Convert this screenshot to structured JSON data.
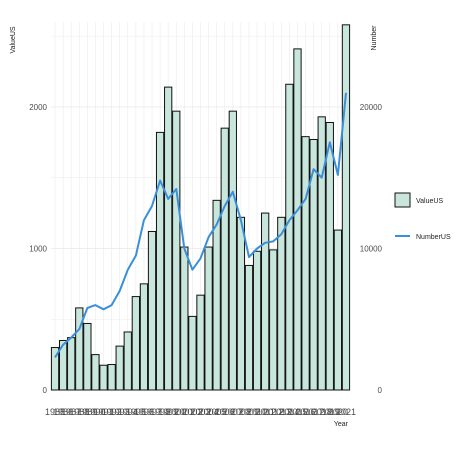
{
  "chart_data": {
    "type": "bar",
    "categories": [
      "1985",
      "1986",
      "1987",
      "1988",
      "1989",
      "1990",
      "1991",
      "1992",
      "1993",
      "1994",
      "1995",
      "1996",
      "1997",
      "1998",
      "1999",
      "2000",
      "2001",
      "2002",
      "2003",
      "2004",
      "2005",
      "2006",
      "2007",
      "2008",
      "2009",
      "2010",
      "2011",
      "2012",
      "2013",
      "2014",
      "2015",
      "2016",
      "2017",
      "2018",
      "2019",
      "2020",
      "2021"
    ],
    "series": [
      {
        "name": "ValueUS",
        "type": "bar",
        "axis": "left",
        "values": [
          300,
          350,
          370,
          580,
          470,
          250,
          175,
          180,
          310,
          410,
          660,
          750,
          1120,
          1820,
          2140,
          1970,
          1010,
          520,
          670,
          1010,
          1340,
          1850,
          1970,
          1220,
          880,
          980,
          1250,
          990,
          1220,
          2160,
          2410,
          1790,
          1770,
          1930,
          1890,
          1130,
          2580
        ]
      },
      {
        "name": "NumberUS",
        "type": "line",
        "axis": "right",
        "values": [
          2300,
          3200,
          3700,
          4300,
          5800,
          6000,
          5700,
          6000,
          7000,
          8500,
          9500,
          12000,
          13000,
          14800,
          13500,
          14200,
          10000,
          8500,
          9300,
          10800,
          11700,
          13000,
          14000,
          12000,
          9400,
          10000,
          10400,
          10500,
          11000,
          12000,
          12700,
          13500,
          15600,
          15000,
          17500,
          15200,
          21000
        ]
      }
    ],
    "ylabel": "ValueUS",
    "y2label": "Number",
    "xlabel": "Year",
    "ylim": [
      0,
      2600
    ],
    "y2lim": [
      0,
      26000
    ],
    "yticks": [
      "0",
      "1000",
      "2000"
    ],
    "y2ticks": [
      "0",
      "10000",
      "20000"
    ],
    "legend_position": "right",
    "grid": true,
    "colors": {
      "bar_fill": "#c9e6dc",
      "bar_stroke": "#111111",
      "line": "#3a8fd8",
      "grid": "#ebebeb",
      "text": "#4d4d4d"
    }
  }
}
